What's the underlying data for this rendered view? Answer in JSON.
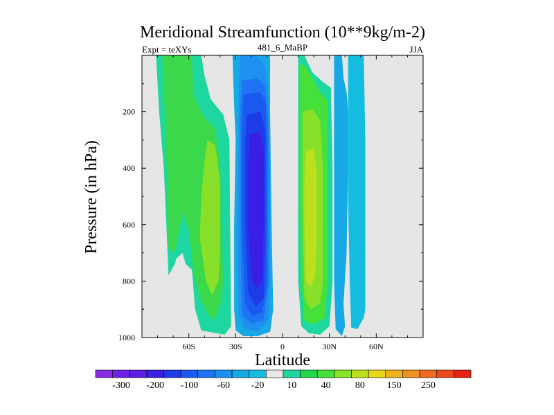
{
  "chart_data": {
    "type": "heatmap",
    "title": "Meridional Streamfunction (10**9kg/m-2)",
    "left_label": "Expt = teXYs",
    "center_label": "481_6_MaBP",
    "right_label": "JJA",
    "xlabel": "Latitude",
    "ylabel": "Pressure (in hPa)",
    "xlim": [
      -90,
      90
    ],
    "ylim": [
      1000,
      0
    ],
    "y_reversed": true,
    "grid": false,
    "x_ticks": [
      {
        "value": -60,
        "label": "60S"
      },
      {
        "value": -30,
        "label": "30S"
      },
      {
        "value": 0,
        "label": "0"
      },
      {
        "value": 30,
        "label": "30N"
      },
      {
        "value": 60,
        "label": "60N"
      }
    ],
    "y_ticks": [
      {
        "value": 200,
        "label": "200"
      },
      {
        "value": 400,
        "label": "400"
      },
      {
        "value": 600,
        "label": "600"
      },
      {
        "value": 800,
        "label": "800"
      },
      {
        "value": 1000,
        "label": "1000"
      }
    ],
    "missing_color": "#e6e6e6",
    "colorbar": {
      "colors": [
        "#8a2be2",
        "#6e22e6",
        "#5a1fe0",
        "#3a1ee6",
        "#1e3be8",
        "#1a5af0",
        "#1e74f2",
        "#1e90f0",
        "#17a8e6",
        "#14bde0",
        "#e8e8e8",
        "#1ed6a0",
        "#22d84a",
        "#46e03a",
        "#88e22a",
        "#bde01e",
        "#e6d814",
        "#f0b41a",
        "#f0901e",
        "#f06a20",
        "#ec4a1e",
        "#e62214"
      ],
      "labels": [
        "-300",
        "-200",
        "-100",
        "-60",
        "-20",
        "10",
        "40",
        "80",
        "150",
        "250"
      ],
      "label_slots": [
        1,
        3,
        5,
        7,
        9,
        11,
        13,
        15,
        17,
        19
      ]
    },
    "regions": [
      {
        "name": "sh-outer-cell",
        "color": "#1ed6a0",
        "points": [
          [
            -81,
            0
          ],
          [
            -52,
            0
          ],
          [
            -50,
            70
          ],
          [
            -46,
            155
          ],
          [
            -38,
            210
          ],
          [
            -34,
            300
          ],
          [
            -33,
            960
          ],
          [
            -37,
            990
          ],
          [
            -52,
            975
          ],
          [
            -56,
            900
          ],
          [
            -58,
            760
          ],
          [
            -62,
            740
          ],
          [
            -64,
            700
          ],
          [
            -68,
            720
          ],
          [
            -69,
            740
          ],
          [
            -73,
            780
          ],
          [
            -74,
            650
          ],
          [
            -76,
            400
          ],
          [
            -79,
            200
          ]
        ]
      },
      {
        "name": "sh-outer-cell-level2",
        "color": "#3ad84a",
        "points": [
          [
            -77,
            0
          ],
          [
            -58,
            0
          ],
          [
            -57,
            140
          ],
          [
            -50,
            220
          ],
          [
            -43,
            260
          ],
          [
            -40,
            380
          ],
          [
            -38,
            800
          ],
          [
            -39,
            870
          ],
          [
            -44,
            940
          ],
          [
            -48,
            915
          ],
          [
            -53,
            860
          ],
          [
            -57,
            770
          ],
          [
            -60,
            620
          ],
          [
            -64,
            560
          ],
          [
            -69,
            700
          ],
          [
            -73,
            680
          ],
          [
            -74,
            450
          ],
          [
            -75,
            240
          ]
        ]
      },
      {
        "name": "sh-outer-cell-level3",
        "color": "#88e02a",
        "points": [
          [
            -48,
            300
          ],
          [
            -43,
            320
          ],
          [
            -40,
            450
          ],
          [
            -40,
            700
          ],
          [
            -41,
            800
          ],
          [
            -45,
            850
          ],
          [
            -49,
            800
          ],
          [
            -53,
            650
          ],
          [
            -52,
            500
          ],
          [
            -50,
            380
          ]
        ]
      },
      {
        "name": "sh-main-cell",
        "color": "#17a8e6",
        "points": [
          [
            -32,
            0
          ],
          [
            -17,
            0
          ],
          [
            -12,
            0
          ],
          [
            -8,
            0
          ],
          [
            -8,
            200
          ],
          [
            -7,
            600
          ],
          [
            -6,
            900
          ],
          [
            -8,
            980
          ],
          [
            -16,
            995
          ],
          [
            -25,
            995
          ],
          [
            -30,
            975
          ],
          [
            -31,
            900
          ],
          [
            -31,
            600
          ],
          [
            -30,
            300
          ],
          [
            -31,
            180
          ]
        ]
      },
      {
        "name": "sh-main-cell-level2",
        "color": "#1e90f0",
        "points": [
          [
            -27,
            0
          ],
          [
            -17,
            0
          ],
          [
            -11,
            40
          ],
          [
            -9,
            140
          ],
          [
            -8,
            400
          ],
          [
            -8,
            800
          ],
          [
            -9,
            940
          ],
          [
            -16,
            980
          ],
          [
            -24,
            970
          ],
          [
            -28,
            920
          ],
          [
            -29,
            600
          ],
          [
            -28,
            300
          ],
          [
            -28,
            130
          ]
        ]
      },
      {
        "name": "sh-main-cell-level3",
        "color": "#1e74f2",
        "points": [
          [
            -26,
            90
          ],
          [
            -16,
            80
          ],
          [
            -11,
            110
          ],
          [
            -9,
            250
          ],
          [
            -9,
            800
          ],
          [
            -12,
            940
          ],
          [
            -20,
            950
          ],
          [
            -26,
            920
          ],
          [
            -27,
            600
          ],
          [
            -27,
            200
          ]
        ]
      },
      {
        "name": "sh-main-cell-level4",
        "color": "#1a5af0",
        "points": [
          [
            -25,
            140
          ],
          [
            -15,
            130
          ],
          [
            -11,
            160
          ],
          [
            -10,
            300
          ],
          [
            -10,
            820
          ],
          [
            -13,
            910
          ],
          [
            -19,
            925
          ],
          [
            -24,
            880
          ],
          [
            -26,
            600
          ],
          [
            -26,
            250
          ]
        ]
      },
      {
        "name": "sh-main-cell-level5",
        "color": "#1e3be8",
        "points": [
          [
            -23,
            210
          ],
          [
            -14,
            200
          ],
          [
            -11,
            260
          ],
          [
            -11,
            650
          ],
          [
            -12,
            860
          ],
          [
            -17,
            890
          ],
          [
            -22,
            840
          ],
          [
            -24,
            600
          ],
          [
            -24,
            320
          ]
        ]
      },
      {
        "name": "sh-main-cell-level6",
        "color": "#3a1ee6",
        "points": [
          [
            -21,
            280
          ],
          [
            -15,
            270
          ],
          [
            -12,
            330
          ],
          [
            -12,
            600
          ],
          [
            -13,
            800
          ],
          [
            -17,
            830
          ],
          [
            -20,
            780
          ],
          [
            -22,
            600
          ],
          [
            -22,
            380
          ]
        ]
      },
      {
        "name": "nh-cell",
        "color": "#1ed6a0",
        "points": [
          [
            10,
            0
          ],
          [
            14,
            0
          ],
          [
            19,
            60
          ],
          [
            26,
            95
          ],
          [
            31,
            115
          ],
          [
            32,
            400
          ],
          [
            32,
            800
          ],
          [
            30,
            960
          ],
          [
            24,
            990
          ],
          [
            17,
            985
          ],
          [
            12,
            960
          ],
          [
            10,
            800
          ],
          [
            10,
            500
          ],
          [
            10,
            200
          ]
        ]
      },
      {
        "name": "nh-cell-level2",
        "color": "#46e03a",
        "points": [
          [
            11,
            30
          ],
          [
            15,
            40
          ],
          [
            20,
            90
          ],
          [
            25,
            140
          ],
          [
            29,
            160
          ],
          [
            29,
            400
          ],
          [
            29,
            800
          ],
          [
            27,
            930
          ],
          [
            20,
            955
          ],
          [
            14,
            940
          ],
          [
            12,
            800
          ],
          [
            11,
            500
          ],
          [
            11,
            200
          ]
        ]
      },
      {
        "name": "nh-cell-level3",
        "color": "#88e02a",
        "points": [
          [
            13,
            200
          ],
          [
            19,
            190
          ],
          [
            24,
            230
          ],
          [
            26,
            400
          ],
          [
            26,
            800
          ],
          [
            24,
            880
          ],
          [
            18,
            900
          ],
          [
            14,
            860
          ],
          [
            13,
            600
          ],
          [
            13,
            400
          ]
        ]
      },
      {
        "name": "nh-cell-level4",
        "color": "#bde01e",
        "points": [
          [
            15,
            340
          ],
          [
            20,
            330
          ],
          [
            22,
            420
          ],
          [
            22,
            600
          ],
          [
            21,
            780
          ],
          [
            18,
            820
          ],
          [
            15,
            800
          ],
          [
            14,
            600
          ],
          [
            14,
            450
          ]
        ]
      },
      {
        "name": "nh-outer-cell",
        "color": "#17a8e6",
        "points": [
          [
            33,
            0
          ],
          [
            38,
            0
          ],
          [
            39,
            80
          ],
          [
            41,
            130
          ],
          [
            42,
            200
          ],
          [
            42,
            400
          ],
          [
            41,
            700
          ],
          [
            39,
            880
          ],
          [
            40,
            960
          ],
          [
            38,
            995
          ],
          [
            34,
            970
          ],
          [
            33,
            800
          ],
          [
            33,
            500
          ],
          [
            33,
            300
          ]
        ]
      },
      {
        "name": "nh-far-cell",
        "color": "#14bde0",
        "points": [
          [
            42,
            0
          ],
          [
            52,
            0
          ],
          [
            53,
            300
          ],
          [
            53,
            600
          ],
          [
            53,
            900
          ],
          [
            52,
            930
          ],
          [
            48,
            970
          ],
          [
            44,
            965
          ],
          [
            43,
            800
          ],
          [
            42,
            500
          ],
          [
            42,
            200
          ]
        ]
      }
    ]
  }
}
